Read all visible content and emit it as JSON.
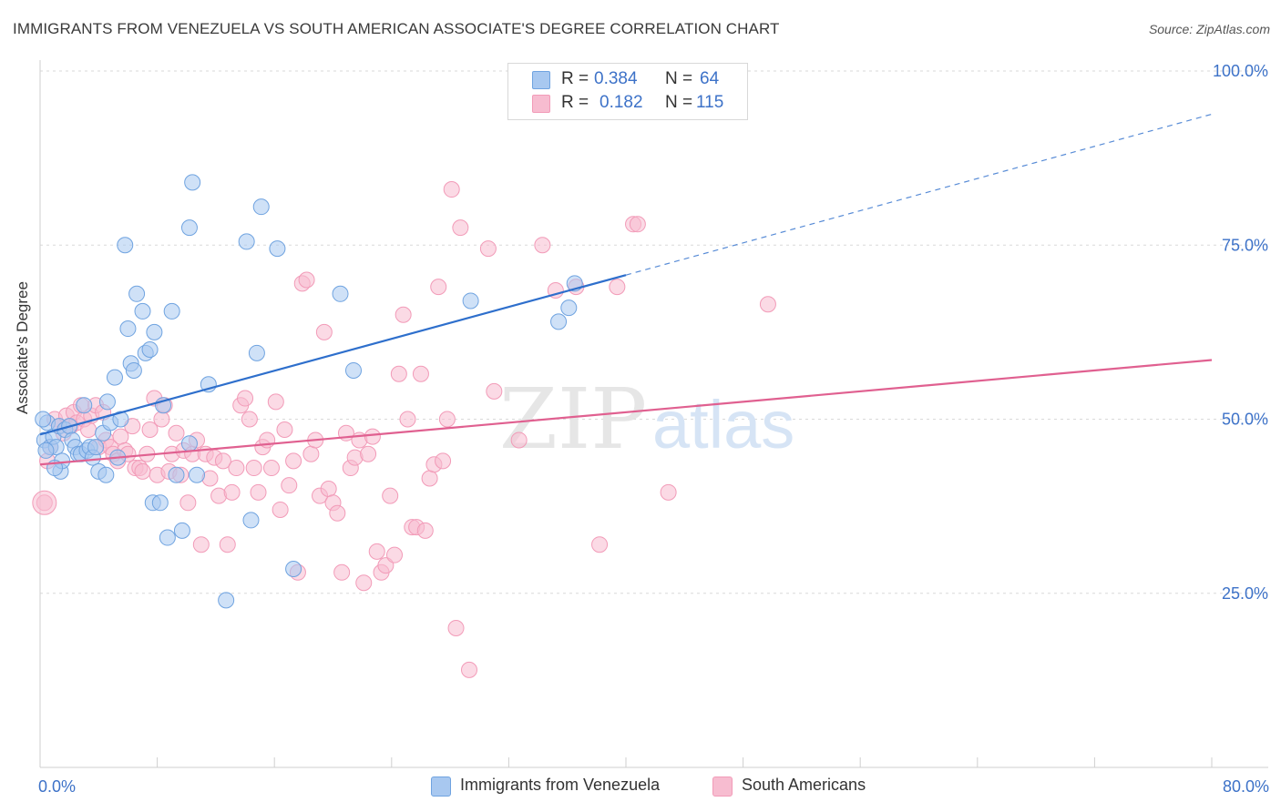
{
  "title": "IMMIGRANTS FROM VENEZUELA VS SOUTH AMERICAN ASSOCIATE'S DEGREE CORRELATION CHART",
  "source": "Source: ZipAtlas.com",
  "watermark": {
    "zip": "ZIP",
    "atlas": "atlas"
  },
  "legend": {
    "rows": [
      {
        "r_label": "R =",
        "r_value": "0.384",
        "n_label": "N =",
        "n_value": "64",
        "color": "#a8c8f0"
      },
      {
        "r_label": "R =",
        "r_value": "0.182",
        "n_label": "N =",
        "n_value": "115",
        "color": "#f7bcd0"
      }
    ]
  },
  "bottom_legend": [
    {
      "label": "Immigrants from Venezuela",
      "color": "#a8c8f0"
    },
    {
      "label": "South Americans",
      "color": "#f7bcd0"
    }
  ],
  "chart_data": {
    "type": "scatter",
    "title": "IMMIGRANTS FROM VENEZUELA VS SOUTH AMERICAN ASSOCIATE'S DEGREE CORRELATION CHART",
    "xlabel": "",
    "ylabel": "Associate's Degree",
    "xlim": [
      0,
      80
    ],
    "ylim": [
      0,
      100
    ],
    "x_tick_labels": [
      "0.0%",
      "80.0%"
    ],
    "y_tick_labels": [
      "25.0%",
      "50.0%",
      "75.0%",
      "100.0%"
    ],
    "y_ticks": [
      25,
      50,
      75,
      100
    ],
    "grid": true,
    "series": [
      {
        "name": "Immigrants from Venezuela",
        "color": "#6fa3e0",
        "fill": "#a8c8f0",
        "trend": {
          "x0": 0,
          "y0": 47.8,
          "x1": 40,
          "y1": 70.7,
          "dashed_to_x": 80,
          "dashed_to_y": 93.8,
          "color": "#2e6fcc"
        },
        "points": [
          [
            0.3,
            47
          ],
          [
            0.5,
            49.5
          ],
          [
            0.7,
            46
          ],
          [
            0.9,
            47.5
          ],
          [
            1.1,
            46
          ],
          [
            1.3,
            49
          ],
          [
            1.4,
            42.5
          ],
          [
            1.5,
            44
          ],
          [
            1.7,
            48.5
          ],
          [
            2.0,
            49
          ],
          [
            2.2,
            47
          ],
          [
            2.4,
            46
          ],
          [
            2.6,
            45
          ],
          [
            2.8,
            45
          ],
          [
            3.0,
            52
          ],
          [
            3.2,
            45.5
          ],
          [
            3.4,
            46
          ],
          [
            3.6,
            44.5
          ],
          [
            3.8,
            46
          ],
          [
            4.0,
            42.5
          ],
          [
            4.3,
            48
          ],
          [
            4.5,
            42
          ],
          [
            4.6,
            52.5
          ],
          [
            4.8,
            49.5
          ],
          [
            5.1,
            56
          ],
          [
            5.3,
            44.5
          ],
          [
            5.5,
            50
          ],
          [
            5.8,
            75
          ],
          [
            6.0,
            63
          ],
          [
            6.2,
            58
          ],
          [
            6.4,
            57
          ],
          [
            6.6,
            68
          ],
          [
            7.0,
            65.5
          ],
          [
            7.2,
            59.5
          ],
          [
            7.5,
            60
          ],
          [
            7.7,
            38
          ],
          [
            7.8,
            62.5
          ],
          [
            8.2,
            38
          ],
          [
            8.4,
            52
          ],
          [
            8.7,
            33
          ],
          [
            9.0,
            65.5
          ],
          [
            9.3,
            42
          ],
          [
            9.7,
            34
          ],
          [
            10.2,
            46.5
          ],
          [
            10.4,
            84
          ],
          [
            10.2,
            77.5
          ],
          [
            10.7,
            42
          ],
          [
            11.5,
            55
          ],
          [
            12.7,
            24
          ],
          [
            14.1,
            75.5
          ],
          [
            14.4,
            35.5
          ],
          [
            14.8,
            59.5
          ],
          [
            15.1,
            80.5
          ],
          [
            16.2,
            74.5
          ],
          [
            17.3,
            28.5
          ],
          [
            20.5,
            68
          ],
          [
            21.4,
            57
          ],
          [
            29.4,
            67
          ],
          [
            35.4,
            64
          ],
          [
            36.1,
            66
          ],
          [
            36.5,
            69.5
          ],
          [
            0.2,
            50
          ],
          [
            0.4,
            45.5
          ],
          [
            1.0,
            43
          ]
        ]
      },
      {
        "name": "South Americans",
        "color": "#f29bb8",
        "fill": "#f7bcd0",
        "trend": {
          "x0": 0,
          "y0": 43.5,
          "x1": 80,
          "y1": 58.5,
          "color": "#e06090"
        },
        "points": [
          [
            0.3,
            38
          ],
          [
            0.5,
            44
          ],
          [
            0.7,
            46
          ],
          [
            1.0,
            50
          ],
          [
            1.3,
            49
          ],
          [
            1.6,
            48
          ],
          [
            1.8,
            50.5
          ],
          [
            2.1,
            49
          ],
          [
            2.3,
            51
          ],
          [
            2.5,
            49.5
          ],
          [
            2.8,
            52
          ],
          [
            3.0,
            50
          ],
          [
            3.3,
            48.5
          ],
          [
            3.5,
            50.5
          ],
          [
            3.8,
            52
          ],
          [
            4.0,
            46
          ],
          [
            4.3,
            51
          ],
          [
            4.5,
            47
          ],
          [
            4.8,
            46
          ],
          [
            5.0,
            45
          ],
          [
            5.3,
            44
          ],
          [
            5.5,
            47.5
          ],
          [
            5.8,
            45.5
          ],
          [
            6.0,
            45
          ],
          [
            6.3,
            49
          ],
          [
            6.5,
            43
          ],
          [
            6.8,
            43
          ],
          [
            7.0,
            42.5
          ],
          [
            7.3,
            45
          ],
          [
            7.5,
            48.5
          ],
          [
            7.8,
            53
          ],
          [
            8.0,
            42
          ],
          [
            8.3,
            50
          ],
          [
            8.5,
            52
          ],
          [
            8.8,
            42.5
          ],
          [
            9.0,
            45
          ],
          [
            9.3,
            48
          ],
          [
            9.6,
            42
          ],
          [
            9.8,
            45.5
          ],
          [
            10.1,
            38
          ],
          [
            10.4,
            45
          ],
          [
            10.7,
            47
          ],
          [
            11.0,
            32
          ],
          [
            11.3,
            45
          ],
          [
            11.6,
            41.5
          ],
          [
            11.9,
            44.5
          ],
          [
            12.2,
            39
          ],
          [
            12.5,
            44
          ],
          [
            12.8,
            32
          ],
          [
            13.1,
            39.5
          ],
          [
            13.4,
            43
          ],
          [
            13.7,
            52
          ],
          [
            14.0,
            53
          ],
          [
            14.3,
            50
          ],
          [
            14.6,
            43
          ],
          [
            14.9,
            39.5
          ],
          [
            15.2,
            46
          ],
          [
            15.5,
            47
          ],
          [
            15.8,
            43
          ],
          [
            16.1,
            52.5
          ],
          [
            16.4,
            37
          ],
          [
            16.7,
            48.5
          ],
          [
            17.0,
            40.5
          ],
          [
            17.3,
            44
          ],
          [
            17.6,
            28
          ],
          [
            17.9,
            69.5
          ],
          [
            18.2,
            70
          ],
          [
            18.5,
            45
          ],
          [
            18.8,
            47
          ],
          [
            19.1,
            39
          ],
          [
            19.4,
            62.5
          ],
          [
            19.7,
            40
          ],
          [
            20.0,
            38
          ],
          [
            20.3,
            36.5
          ],
          [
            20.6,
            28
          ],
          [
            20.9,
            48
          ],
          [
            21.2,
            43
          ],
          [
            21.5,
            44.5
          ],
          [
            21.8,
            47
          ],
          [
            22.1,
            26.5
          ],
          [
            22.4,
            45
          ],
          [
            22.7,
            47.5
          ],
          [
            23.0,
            31
          ],
          [
            23.3,
            28
          ],
          [
            23.6,
            29
          ],
          [
            23.9,
            39
          ],
          [
            24.2,
            30.5
          ],
          [
            24.5,
            56.5
          ],
          [
            24.8,
            65
          ],
          [
            25.1,
            50
          ],
          [
            25.4,
            34.5
          ],
          [
            25.7,
            34.5
          ],
          [
            26.0,
            56.5
          ],
          [
            26.3,
            34
          ],
          [
            26.6,
            41.5
          ],
          [
            26.9,
            43.5
          ],
          [
            27.2,
            69
          ],
          [
            27.5,
            44
          ],
          [
            27.8,
            50
          ],
          [
            28.1,
            83
          ],
          [
            28.4,
            20
          ],
          [
            28.7,
            77.5
          ],
          [
            29.3,
            14
          ],
          [
            30.6,
            74.5
          ],
          [
            31.0,
            54
          ],
          [
            32.7,
            47
          ],
          [
            34.3,
            75
          ],
          [
            35.2,
            68.5
          ],
          [
            36.6,
            69
          ],
          [
            38.2,
            32
          ],
          [
            39.4,
            69
          ],
          [
            40.5,
            78
          ],
          [
            40.8,
            78
          ],
          [
            42.9,
            39.5
          ],
          [
            49.7,
            66.5
          ]
        ]
      }
    ]
  }
}
